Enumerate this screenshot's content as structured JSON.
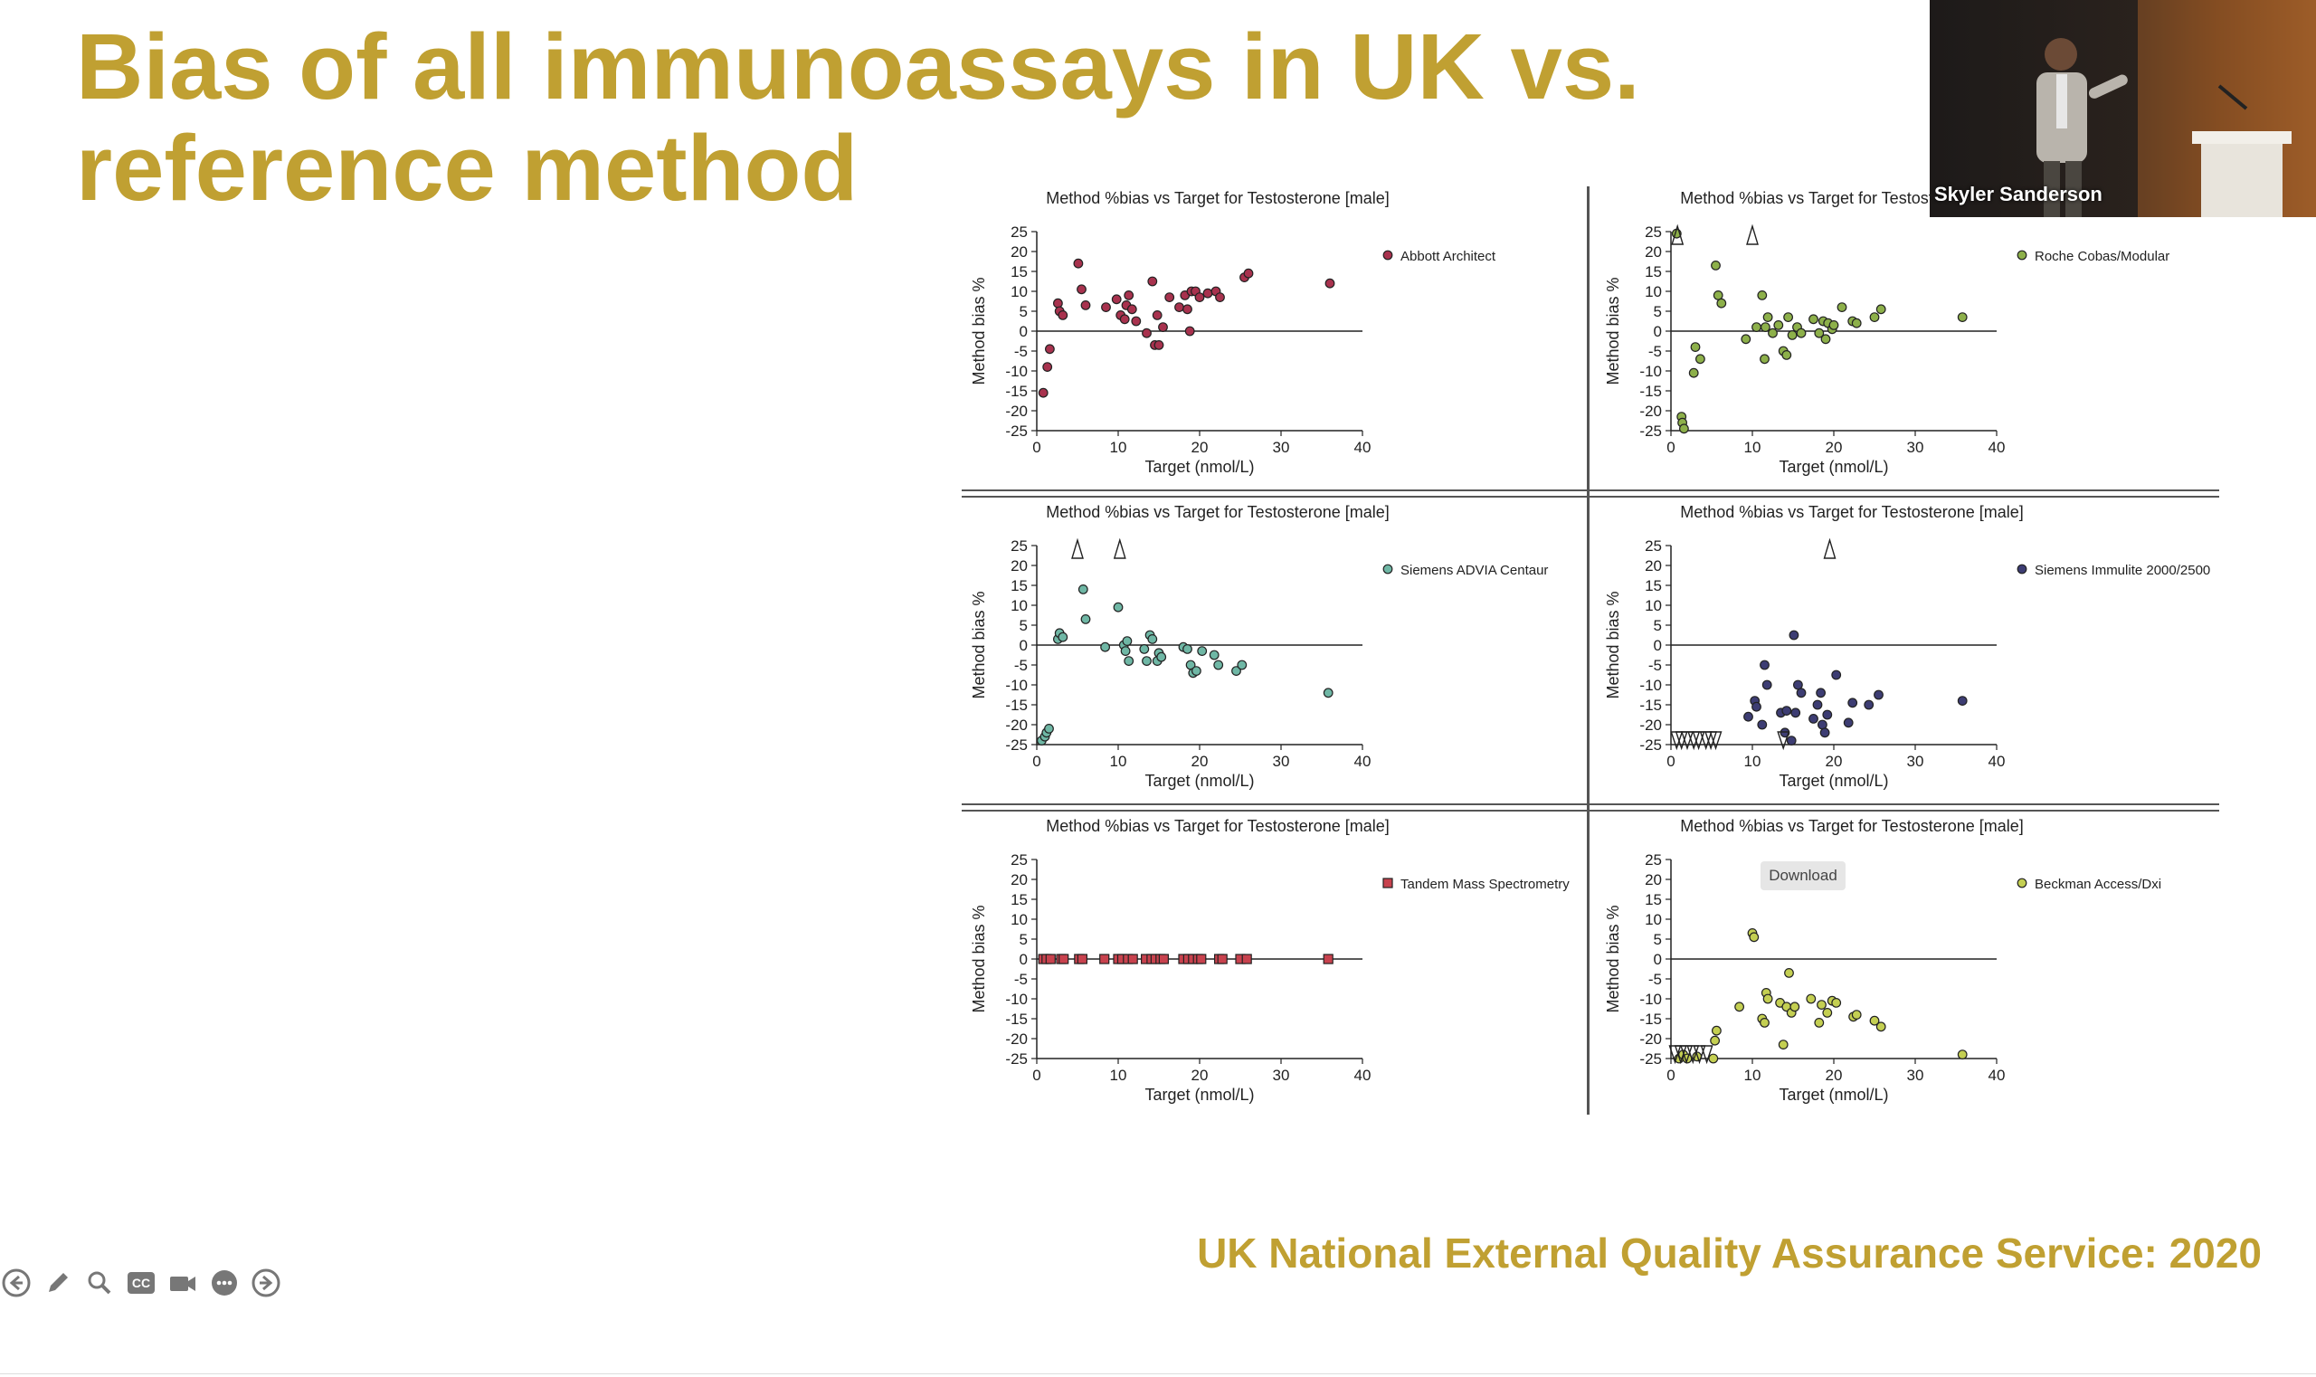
{
  "slide": {
    "title": "Bias of all immunoassays in UK vs. reference method",
    "source": "UK National External Quality Assurance Service: 2020"
  },
  "speaker": {
    "name": "Skyler Sanderson"
  },
  "tooltip": {
    "download": "Download"
  },
  "toolbar": {
    "icons": [
      "back-arrow-icon",
      "pen-icon",
      "magnifier-icon",
      "closed-caption-icon",
      "video-camera-icon",
      "more-icon",
      "forward-arrow-icon"
    ],
    "cc_label": "CC"
  },
  "colors": {
    "title": "#c0a032",
    "abbott": "#a8324e",
    "roche": "#8db04a",
    "siemens_advia": "#6fb7a5",
    "siemens_immulite": "#3d3d73",
    "tandem": "#c8424e",
    "beckman": "#c4cf52"
  },
  "chart_data": [
    {
      "type": "scatter",
      "title": "Method %bias vs Target for Testosterone [male]",
      "xlabel": "Target (nmol/L)",
      "ylabel": "Method bias %",
      "xlim": [
        0,
        40
      ],
      "ylim": [
        -25,
        25
      ],
      "xticks": [
        "0",
        "10",
        "20",
        "30",
        "40"
      ],
      "yticks": [
        "25",
        "20",
        "15",
        "10",
        "5",
        "0",
        "-5",
        "-10",
        "-15",
        "-20",
        "-25"
      ],
      "legend": "top-right",
      "series": [
        {
          "name": "Abbott Architect",
          "marker": "circle",
          "points": [
            [
              0.8,
              -15.5
            ],
            [
              1.3,
              -9
            ],
            [
              1.6,
              -4.5
            ],
            [
              2.6,
              7
            ],
            [
              2.8,
              5
            ],
            [
              3.2,
              4
            ],
            [
              5.1,
              17
            ],
            [
              5.5,
              10.5
            ],
            [
              6.0,
              6.5
            ],
            [
              8.5,
              6
            ],
            [
              9.8,
              8
            ],
            [
              10.3,
              4
            ],
            [
              10.8,
              3
            ],
            [
              11.0,
              6.5
            ],
            [
              11.3,
              9
            ],
            [
              11.7,
              5.5
            ],
            [
              12.2,
              2.5
            ],
            [
              13.5,
              -0.5
            ],
            [
              14.2,
              12.5
            ],
            [
              14.5,
              -3.5
            ],
            [
              14.8,
              4
            ],
            [
              15.0,
              -3.5
            ],
            [
              15.5,
              1
            ],
            [
              16.3,
              8.5
            ],
            [
              17.5,
              6
            ],
            [
              18.2,
              9
            ],
            [
              18.5,
              5.5
            ],
            [
              18.8,
              0
            ],
            [
              19.0,
              10
            ],
            [
              19.5,
              10
            ],
            [
              20.0,
              8.5
            ],
            [
              21.0,
              9.5
            ],
            [
              22.0,
              10
            ],
            [
              22.5,
              8.5
            ],
            [
              25.5,
              13.5
            ],
            [
              26.0,
              14.5
            ],
            [
              36.0,
              12
            ]
          ]
        }
      ]
    },
    {
      "type": "scatter",
      "title": "Method %bias vs Target for Testosterone [male]",
      "xlabel": "Target (nmol/L)",
      "ylabel": "Method bias %",
      "xlim": [
        0,
        40
      ],
      "ylim": [
        -25,
        25
      ],
      "xticks": [
        "0",
        "10",
        "20",
        "30",
        "40"
      ],
      "yticks": [
        "25",
        "20",
        "15",
        "10",
        "5",
        "0",
        "-5",
        "-10",
        "-15",
        "-20",
        "-25"
      ],
      "legend": "top-right",
      "series": [
        {
          "name": "Roche Cobas/Modular",
          "marker": "circle",
          "outliers_above": [
            0.8,
            10.0
          ],
          "points": [
            [
              0.7,
              24.5
            ],
            [
              1.3,
              -21.5
            ],
            [
              1.4,
              -23
            ],
            [
              1.6,
              -24.5
            ],
            [
              2.8,
              -10.5
            ],
            [
              3.0,
              -4
            ],
            [
              3.6,
              -7
            ],
            [
              5.5,
              16.5
            ],
            [
              5.8,
              9
            ],
            [
              6.2,
              7
            ],
            [
              9.2,
              -2
            ],
            [
              10.5,
              1
            ],
            [
              11.2,
              9
            ],
            [
              11.5,
              -7
            ],
            [
              11.6,
              1
            ],
            [
              11.9,
              3.5
            ],
            [
              12.5,
              -0.5
            ],
            [
              13.2,
              1.5
            ],
            [
              13.8,
              -5
            ],
            [
              14.2,
              -6
            ],
            [
              14.4,
              3.5
            ],
            [
              14.9,
              -1
            ],
            [
              15.5,
              1
            ],
            [
              16.0,
              -0.5
            ],
            [
              17.5,
              3
            ],
            [
              18.2,
              -0.5
            ],
            [
              18.7,
              2.5
            ],
            [
              19.0,
              -2
            ],
            [
              19.3,
              2
            ],
            [
              19.8,
              0.5
            ],
            [
              20.0,
              1.5
            ],
            [
              21.0,
              6
            ],
            [
              22.3,
              2.5
            ],
            [
              22.8,
              2
            ],
            [
              25.0,
              3.5
            ],
            [
              25.8,
              5.5
            ],
            [
              35.8,
              3.5
            ]
          ]
        }
      ]
    },
    {
      "type": "scatter",
      "title": "Method %bias vs Target for Testosterone [male]",
      "xlabel": "Target (nmol/L)",
      "ylabel": "Method bias %",
      "xlim": [
        0,
        40
      ],
      "ylim": [
        -25,
        25
      ],
      "xticks": [
        "0",
        "10",
        "20",
        "30",
        "40"
      ],
      "yticks": [
        "25",
        "20",
        "15",
        "10",
        "5",
        "0",
        "-5",
        "-10",
        "-15",
        "-20",
        "-25"
      ],
      "legend": "top-right",
      "series": [
        {
          "name": "Siemens ADVIA Centaur",
          "marker": "circle",
          "outliers_above": [
            5.0,
            10.2
          ],
          "points": [
            [
              0.6,
              -24
            ],
            [
              1.0,
              -23
            ],
            [
              1.2,
              -22
            ],
            [
              1.5,
              -21
            ],
            [
              2.6,
              1.5
            ],
            [
              2.8,
              3
            ],
            [
              3.2,
              2
            ],
            [
              5.7,
              14
            ],
            [
              6.0,
              6.5
            ],
            [
              8.4,
              -0.5
            ],
            [
              10.0,
              9.5
            ],
            [
              10.7,
              0
            ],
            [
              10.9,
              -1.5
            ],
            [
              11.1,
              1
            ],
            [
              11.3,
              -4
            ],
            [
              13.2,
              -1
            ],
            [
              13.5,
              -4
            ],
            [
              13.9,
              2.5
            ],
            [
              14.2,
              1.5
            ],
            [
              14.8,
              -4
            ],
            [
              15.0,
              -2
            ],
            [
              15.3,
              -3
            ],
            [
              18.0,
              -0.5
            ],
            [
              18.5,
              -1
            ],
            [
              18.9,
              -5
            ],
            [
              19.2,
              -7
            ],
            [
              19.6,
              -6.5
            ],
            [
              20.3,
              -1.5
            ],
            [
              21.8,
              -2.5
            ],
            [
              22.3,
              -5
            ],
            [
              24.5,
              -6.5
            ],
            [
              25.2,
              -5
            ],
            [
              35.8,
              -12
            ]
          ]
        }
      ]
    },
    {
      "type": "scatter",
      "title": "Method %bias vs Target for Testosterone [male]",
      "xlabel": "Target (nmol/L)",
      "ylabel": "Method bias %",
      "xlim": [
        0,
        40
      ],
      "ylim": [
        -25,
        25
      ],
      "xticks": [
        "0",
        "10",
        "20",
        "30",
        "40"
      ],
      "yticks": [
        "25",
        "20",
        "15",
        "10",
        "5",
        "0",
        "-5",
        "-10",
        "-15",
        "-20",
        "-25"
      ],
      "legend": "top-right",
      "series": [
        {
          "name": "Siemens Immulite 2000/2500",
          "marker": "circle",
          "outliers_above": [
            19.5
          ],
          "outliers_below": [
            0.7,
            1.3,
            2.0,
            2.8,
            3.4,
            4.3,
            4.9,
            5.5,
            13.8
          ],
          "points": [
            [
              9.5,
              -18
            ],
            [
              10.3,
              -14
            ],
            [
              10.5,
              -15.5
            ],
            [
              11.2,
              -20
            ],
            [
              11.5,
              -5
            ],
            [
              11.8,
              -10
            ],
            [
              13.5,
              -17
            ],
            [
              14.0,
              -22
            ],
            [
              14.2,
              -16.5
            ],
            [
              14.8,
              -24
            ],
            [
              15.1,
              2.5
            ],
            [
              15.3,
              -17
            ],
            [
              15.6,
              -10
            ],
            [
              16.0,
              -12
            ],
            [
              17.5,
              -18.5
            ],
            [
              18.0,
              -15
            ],
            [
              18.4,
              -12
            ],
            [
              18.6,
              -20
            ],
            [
              18.9,
              -22
            ],
            [
              19.2,
              -17.5
            ],
            [
              20.3,
              -7.5
            ],
            [
              21.8,
              -19.5
            ],
            [
              22.3,
              -14.5
            ],
            [
              24.3,
              -15
            ],
            [
              25.5,
              -12.5
            ],
            [
              35.8,
              -14
            ]
          ]
        }
      ]
    },
    {
      "type": "scatter",
      "title": "Method %bias vs Target for Testosterone [male]",
      "xlabel": "Target (nmol/L)",
      "ylabel": "Method bias %",
      "xlim": [
        0,
        40
      ],
      "ylim": [
        -25,
        25
      ],
      "xticks": [
        "0",
        "10",
        "20",
        "30",
        "40"
      ],
      "yticks": [
        "25",
        "20",
        "15",
        "10",
        "5",
        "0",
        "-5",
        "-10",
        "-15",
        "-20",
        "-25"
      ],
      "legend": "top-right",
      "series": [
        {
          "name": "Tandem Mass Spectrometry",
          "marker": "square",
          "points": [
            [
              0.8,
              0
            ],
            [
              1.2,
              0
            ],
            [
              1.7,
              0
            ],
            [
              3.0,
              0
            ],
            [
              3.3,
              0
            ],
            [
              5.2,
              0
            ],
            [
              5.6,
              0
            ],
            [
              8.3,
              0
            ],
            [
              10.0,
              0
            ],
            [
              10.5,
              0
            ],
            [
              11.2,
              0
            ],
            [
              11.8,
              0
            ],
            [
              13.4,
              0
            ],
            [
              14.1,
              0
            ],
            [
              14.6,
              0
            ],
            [
              15.2,
              0
            ],
            [
              15.6,
              0
            ],
            [
              18.0,
              0
            ],
            [
              18.6,
              0
            ],
            [
              19.2,
              0
            ],
            [
              19.8,
              0
            ],
            [
              20.2,
              0
            ],
            [
              22.4,
              0
            ],
            [
              22.8,
              0
            ],
            [
              25.0,
              0
            ],
            [
              25.8,
              0
            ],
            [
              35.8,
              0
            ]
          ]
        }
      ]
    },
    {
      "type": "scatter",
      "title": "Method %bias vs Target for Testosterone [male]",
      "xlabel": "Target (nmol/L)",
      "ylabel": "Method bias %",
      "xlim": [
        0,
        40
      ],
      "ylim": [
        -25,
        25
      ],
      "xticks": [
        "0",
        "10",
        "20",
        "30",
        "40"
      ],
      "yticks": [
        "25",
        "20",
        "15",
        "10",
        "5",
        "0",
        "-5",
        "-10",
        "-15",
        "-20",
        "-25"
      ],
      "legend": "top-right",
      "series": [
        {
          "name": "Beckman Access/Dxi",
          "marker": "circle",
          "outliers_below": [
            0.5,
            1.2,
            1.9,
            2.7,
            3.5,
            4.4
          ],
          "points": [
            [
              1.0,
              -25
            ],
            [
              1.5,
              -24
            ],
            [
              2.0,
              -25
            ],
            [
              3.2,
              -24.5
            ],
            [
              5.2,
              -25
            ],
            [
              5.4,
              -20.5
            ],
            [
              5.6,
              -18
            ],
            [
              8.4,
              -12
            ],
            [
              10.0,
              6.5
            ],
            [
              10.2,
              5.5
            ],
            [
              11.2,
              -15
            ],
            [
              11.5,
              -16
            ],
            [
              11.7,
              -8.5
            ],
            [
              11.9,
              -10
            ],
            [
              13.4,
              -11
            ],
            [
              13.8,
              -21.5
            ],
            [
              14.2,
              -12
            ],
            [
              14.5,
              -3.5
            ],
            [
              14.8,
              -13.5
            ],
            [
              15.2,
              -12
            ],
            [
              17.2,
              -10
            ],
            [
              18.2,
              -16
            ],
            [
              18.5,
              -11.5
            ],
            [
              19.2,
              -13.5
            ],
            [
              19.8,
              -10.5
            ],
            [
              20.3,
              -11
            ],
            [
              22.4,
              -14.5
            ],
            [
              22.8,
              -14
            ],
            [
              25.0,
              -15.5
            ],
            [
              25.8,
              -17
            ],
            [
              35.8,
              -24
            ]
          ]
        }
      ]
    }
  ]
}
